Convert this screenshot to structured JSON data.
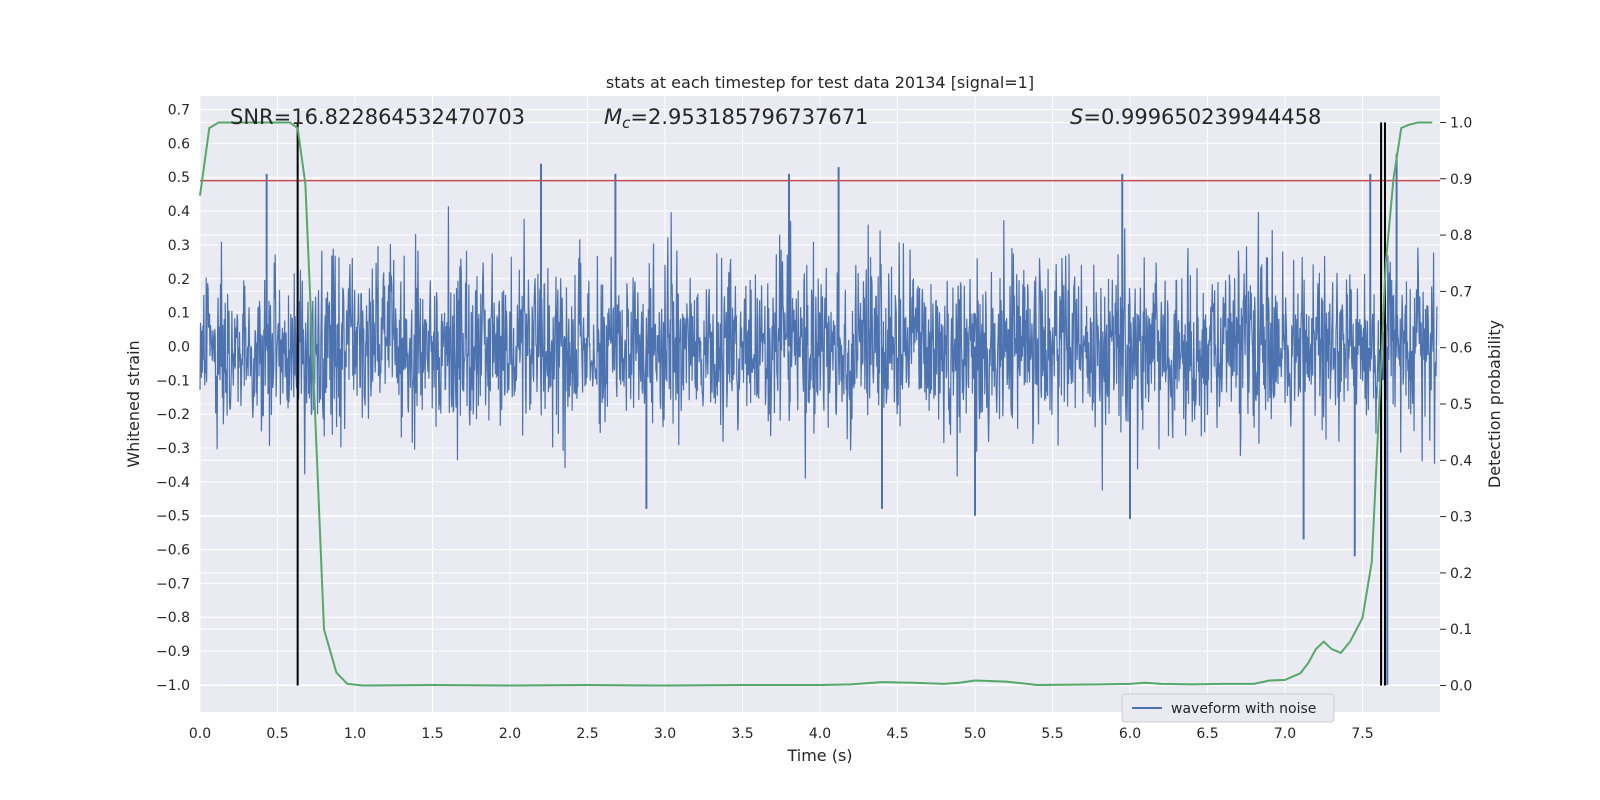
{
  "chart_data": {
    "type": "line",
    "title": "stats at each timestep for test data 20134 [signal=1]",
    "xlabel": "Time (s)",
    "ylabel": "Whitened strain",
    "y2label": "Detection probability",
    "xlim": [
      0.0,
      8.0
    ],
    "ylim": [
      -1.08,
      0.74
    ],
    "y2lim": [
      -0.047,
      1.047
    ],
    "x_ticks": [
      "0.0",
      "0.5",
      "1.0",
      "1.5",
      "2.0",
      "2.5",
      "3.0",
      "3.5",
      "4.0",
      "4.5",
      "5.0",
      "5.5",
      "6.0",
      "6.5",
      "7.0",
      "7.5"
    ],
    "y_ticks": [
      "0.7",
      "0.6",
      "0.5",
      "0.4",
      "0.3",
      "0.2",
      "0.1",
      "0.0",
      "−0.1",
      "−0.2",
      "−0.3",
      "−0.4",
      "−0.5",
      "−0.6",
      "−0.7",
      "−0.8",
      "−0.9",
      "−1.0"
    ],
    "y2_ticks": [
      "1.0",
      "0.9",
      "0.8",
      "0.7",
      "0.6",
      "0.5",
      "0.4",
      "0.3",
      "0.2",
      "0.1",
      "0.0"
    ],
    "grid": true,
    "annotations": {
      "snr": "SNR=16.822864532470703",
      "mc_symbol": "M",
      "mc_sub": "c",
      "mc_value": "=2.953185796737671",
      "s_symbol": "S",
      "s_value": "=0.999650239944458"
    },
    "legend": {
      "placement": "lower-right",
      "entries": [
        "waveform with noise"
      ]
    },
    "series": [
      {
        "name": "waveform with noise",
        "color": "#4c72b0",
        "axis": "left",
        "noise_amplitude_envelope": 0.33,
        "peak_spikes": [
          {
            "x": 0.43,
            "y": 0.51
          },
          {
            "x": 2.2,
            "y": 0.54
          },
          {
            "x": 2.68,
            "y": 0.51
          },
          {
            "x": 3.8,
            "y": 0.51
          },
          {
            "x": 4.12,
            "y": 0.53
          },
          {
            "x": 5.95,
            "y": 0.51
          },
          {
            "x": 7.55,
            "y": 0.51
          },
          {
            "x": 7.72,
            "y": 0.57
          },
          {
            "x": 2.88,
            "y": -0.48
          },
          {
            "x": 4.4,
            "y": -0.48
          },
          {
            "x": 5.0,
            "y": -0.5
          },
          {
            "x": 6.0,
            "y": -0.51
          },
          {
            "x": 7.12,
            "y": -0.57
          },
          {
            "x": 7.45,
            "y": -0.62
          },
          {
            "x": 7.66,
            "y": -1.0
          }
        ]
      },
      {
        "name": "",
        "color": "#55a868",
        "axis": "right",
        "x": [
          0.0,
          0.06,
          0.12,
          0.2,
          0.3,
          0.4,
          0.5,
          0.58,
          0.63,
          0.68,
          0.74,
          0.8,
          0.88,
          0.95,
          1.05,
          1.5,
          2.0,
          2.5,
          3.0,
          3.5,
          4.0,
          4.2,
          4.4,
          4.6,
          4.8,
          4.9,
          5.0,
          5.2,
          5.4,
          5.8,
          6.0,
          6.1,
          6.2,
          6.4,
          6.6,
          6.8,
          6.9,
          7.0,
          7.1,
          7.15,
          7.2,
          7.25,
          7.3,
          7.36,
          7.42,
          7.5,
          7.56,
          7.6,
          7.65,
          7.7,
          7.75,
          7.8,
          7.86,
          7.95
        ],
        "y": [
          0.87,
          0.99,
          1.0,
          1.0,
          1.0,
          1.0,
          1.0,
          1.0,
          0.99,
          0.89,
          0.5,
          0.1,
          0.023,
          0.003,
          0.0,
          0.001,
          0.0,
          0.001,
          0.0,
          0.001,
          0.001,
          0.002,
          0.006,
          0.005,
          0.003,
          0.005,
          0.009,
          0.007,
          0.001,
          0.002,
          0.003,
          0.005,
          0.003,
          0.002,
          0.003,
          0.003,
          0.009,
          0.01,
          0.022,
          0.04,
          0.065,
          0.078,
          0.065,
          0.058,
          0.078,
          0.12,
          0.22,
          0.45,
          0.75,
          0.9,
          0.99,
          0.996,
          1.0,
          1.0
        ]
      }
    ],
    "reference_lines": [
      {
        "orientation": "horizontal",
        "axis": "left",
        "value": 0.49,
        "color": "#c44e52"
      },
      {
        "orientation": "vertical",
        "value": 0.63,
        "color": "#000000"
      },
      {
        "orientation": "vertical",
        "value": 7.62,
        "color": "#000000"
      },
      {
        "orientation": "vertical",
        "value": 7.645,
        "color": "#000000"
      }
    ]
  }
}
